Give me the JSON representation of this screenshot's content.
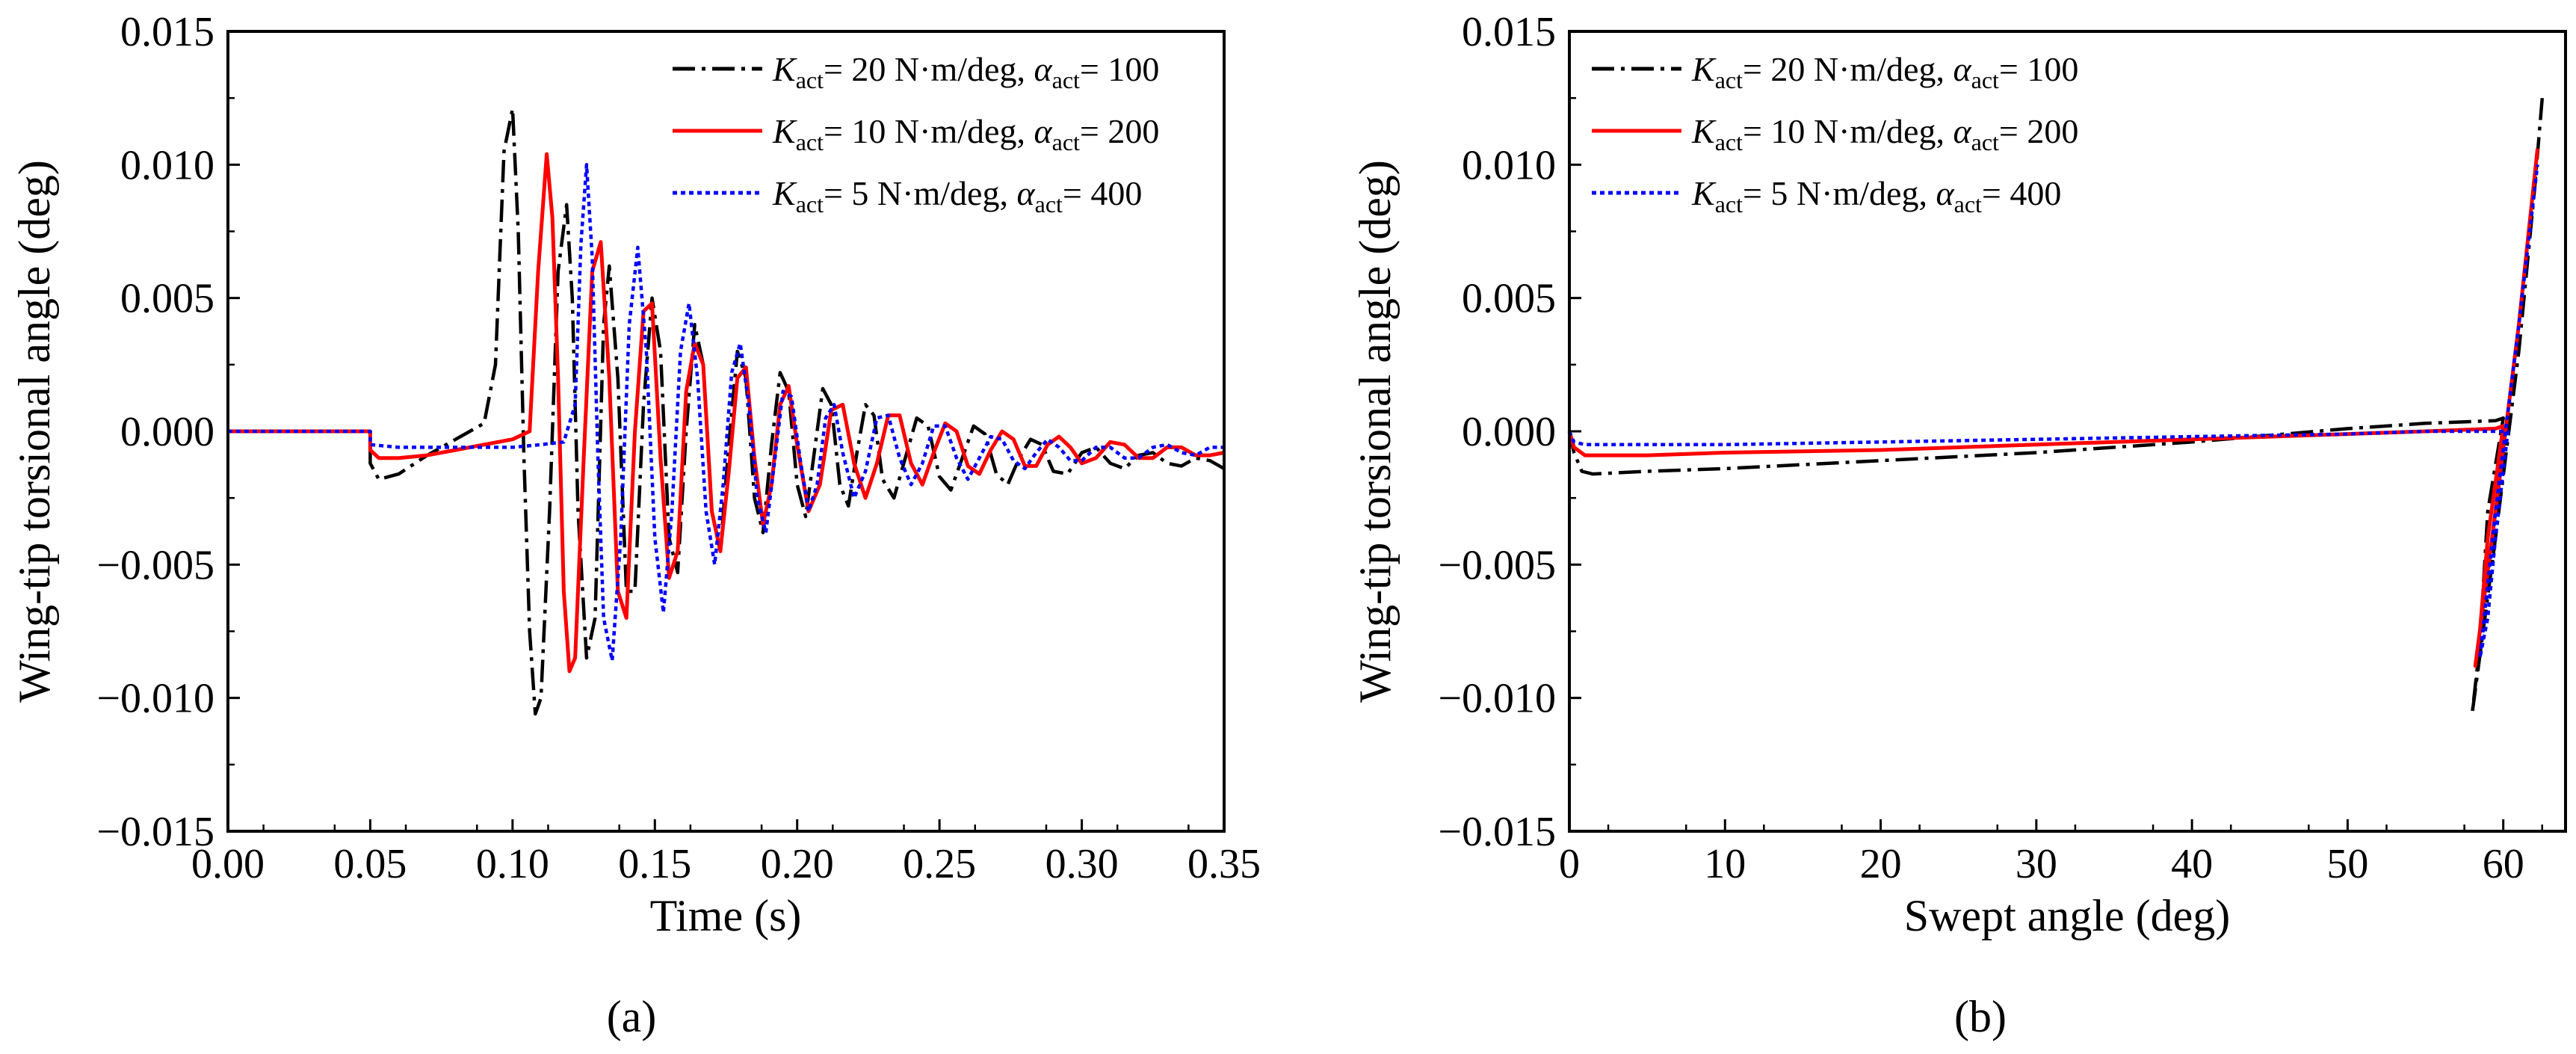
{
  "figure": {
    "panel_labels": [
      "(a)",
      "(b)"
    ],
    "legend": [
      {
        "k": "20",
        "k_unit": "N·m/deg,",
        "alpha": "100",
        "color": "#000000",
        "dash": "dashdot"
      },
      {
        "k": "10",
        "k_unit": "N·m/deg,",
        "alpha": "200",
        "color": "#ff0000",
        "dash": "solid"
      },
      {
        "k": "5",
        "k_unit": "N·m/deg,",
        "alpha": "400",
        "color": "#0000ff",
        "dash": "dot"
      }
    ],
    "legend_symbols": {
      "K": "K",
      "alpha": "α",
      "subscript": "act",
      "equals": "="
    }
  },
  "chart_data": [
    {
      "type": "line",
      "panel": "(a)",
      "title": "",
      "xlabel": "Time (s)",
      "ylabel": "Wing-tip torsional angle (deg)",
      "xlim": [
        0,
        0.35
      ],
      "ylim": [
        -0.015,
        0.015
      ],
      "xticks": [
        0,
        0.05,
        0.1,
        0.15,
        0.2,
        0.25,
        0.3,
        0.35
      ],
      "xtick_labels": [
        "0.00",
        "0.05",
        "0.10",
        "0.15",
        "0.20",
        "0.25",
        "0.30",
        "0.35"
      ],
      "yticks": [
        -0.015,
        -0.01,
        -0.005,
        0,
        0.005,
        0.01,
        0.015
      ],
      "ytick_labels": [
        "−0.015",
        "−0.010",
        "−0.005",
        "0.000",
        "0.005",
        "0.010",
        "0.015"
      ],
      "legend_position": "top-right",
      "series": [
        {
          "name": "K_act = 20 N·m/deg, α_act = 100",
          "color": "#000000",
          "dash": "dashdot",
          "x": [
            0,
            0.05,
            0.05,
            0.053,
            0.06,
            0.07,
            0.08,
            0.09,
            0.094,
            0.097,
            0.1,
            0.102,
            0.104,
            0.106,
            0.108,
            0.11,
            0.113,
            0.116,
            0.119,
            0.121,
            0.123,
            0.126,
            0.129,
            0.132,
            0.134,
            0.137,
            0.14,
            0.143,
            0.146,
            0.149,
            0.152,
            0.155,
            0.158,
            0.161,
            0.164,
            0.167,
            0.17,
            0.173,
            0.176,
            0.179,
            0.182,
            0.185,
            0.188,
            0.191,
            0.194,
            0.197,
            0.2,
            0.203,
            0.206,
            0.209,
            0.212,
            0.215,
            0.218,
            0.221,
            0.224,
            0.227,
            0.23,
            0.234,
            0.238,
            0.242,
            0.246,
            0.25,
            0.254,
            0.258,
            0.262,
            0.266,
            0.27,
            0.274,
            0.278,
            0.282,
            0.286,
            0.29,
            0.295,
            0.3,
            0.305,
            0.31,
            0.315,
            0.32,
            0.325,
            0.33,
            0.335,
            0.34,
            0.345,
            0.35
          ],
          "y": [
            0,
            0,
            -0.0012,
            -0.0018,
            -0.0016,
            -0.0009,
            -0.0003,
            0.0003,
            0.0025,
            0.0105,
            0.0121,
            0.0075,
            -0.001,
            -0.0075,
            -0.0106,
            -0.01,
            -0.003,
            0.006,
            0.0085,
            0.005,
            -0.003,
            -0.0085,
            -0.007,
            0.004,
            0.0062,
            0.002,
            -0.006,
            -0.006,
            0.001,
            0.005,
            0.003,
            -0.004,
            -0.0053,
            0.0,
            0.004,
            0.0025,
            -0.003,
            -0.0045,
            -0.0005,
            0.003,
            0.002,
            -0.0025,
            -0.0038,
            -0.0005,
            0.0022,
            0.0015,
            -0.002,
            -0.0032,
            -0.0008,
            0.0016,
            0.001,
            -0.002,
            -0.0028,
            -0.0008,
            0.001,
            0.0006,
            -0.0018,
            -0.0025,
            -0.001,
            0.0005,
            0.0002,
            -0.0017,
            -0.0022,
            -0.001,
            0.0002,
            -0.0001,
            -0.0016,
            -0.002,
            -0.001,
            -0.0003,
            -0.0005,
            -0.0015,
            -0.0016,
            -0.0008,
            -0.0006,
            -0.0012,
            -0.0014,
            -0.0009,
            -0.0008,
            -0.0012,
            -0.0013,
            -0.001,
            -0.0011,
            -0.0014
          ]
        },
        {
          "name": "K_act = 10 N·m/deg, α_act = 200",
          "color": "#ff0000",
          "dash": "solid",
          "x": [
            0,
            0.05,
            0.05,
            0.053,
            0.06,
            0.07,
            0.08,
            0.09,
            0.1,
            0.106,
            0.109,
            0.112,
            0.114,
            0.116,
            0.118,
            0.12,
            0.122,
            0.125,
            0.128,
            0.131,
            0.134,
            0.137,
            0.14,
            0.143,
            0.146,
            0.149,
            0.152,
            0.155,
            0.158,
            0.161,
            0.164,
            0.167,
            0.17,
            0.173,
            0.176,
            0.179,
            0.182,
            0.185,
            0.188,
            0.191,
            0.194,
            0.197,
            0.2,
            0.204,
            0.208,
            0.212,
            0.216,
            0.22,
            0.224,
            0.228,
            0.232,
            0.236,
            0.24,
            0.244,
            0.248,
            0.252,
            0.256,
            0.26,
            0.264,
            0.268,
            0.272,
            0.276,
            0.28,
            0.284,
            0.288,
            0.292,
            0.296,
            0.3,
            0.305,
            0.31,
            0.315,
            0.32,
            0.325,
            0.33,
            0.335,
            0.34,
            0.345,
            0.35
          ],
          "y": [
            0,
            0,
            -0.0007,
            -0.001,
            -0.001,
            -0.0009,
            -0.0007,
            -0.0005,
            -0.0003,
            0.0,
            0.006,
            0.0104,
            0.008,
            0.002,
            -0.006,
            -0.009,
            -0.0085,
            -0.001,
            0.006,
            0.0071,
            0.002,
            -0.006,
            -0.007,
            0.0,
            0.0045,
            0.0048,
            -0.001,
            -0.0055,
            -0.0045,
            0.0015,
            0.0033,
            0.0025,
            -0.003,
            -0.0045,
            -0.0015,
            0.002,
            0.0024,
            -0.001,
            -0.0035,
            -0.002,
            0.001,
            0.0017,
            -0.0005,
            -0.003,
            -0.002,
            0.0008,
            0.001,
            -0.0012,
            -0.0025,
            -0.0012,
            0.0006,
            0.0006,
            -0.0012,
            -0.002,
            -0.0008,
            0.0003,
            0.0,
            -0.0013,
            -0.0016,
            -0.0007,
            0.0,
            -0.0003,
            -0.0013,
            -0.0013,
            -0.0005,
            -0.0002,
            -0.0006,
            -0.0012,
            -0.001,
            -0.0004,
            -0.0005,
            -0.001,
            -0.001,
            -0.0006,
            -0.0006,
            -0.0009,
            -0.0009,
            -0.0008
          ]
        },
        {
          "name": "K_act = 5 N·m/deg, α_act = 400",
          "color": "#0000ff",
          "dash": "dot",
          "x": [
            0,
            0.05,
            0.05,
            0.06,
            0.08,
            0.1,
            0.11,
            0.118,
            0.122,
            0.124,
            0.126,
            0.128,
            0.13,
            0.132,
            0.135,
            0.138,
            0.141,
            0.144,
            0.147,
            0.15,
            0.153,
            0.156,
            0.159,
            0.162,
            0.165,
            0.168,
            0.171,
            0.174,
            0.177,
            0.18,
            0.183,
            0.186,
            0.189,
            0.192,
            0.195,
            0.198,
            0.201,
            0.204,
            0.207,
            0.21,
            0.213,
            0.216,
            0.22,
            0.224,
            0.228,
            0.232,
            0.236,
            0.24,
            0.244,
            0.248,
            0.252,
            0.256,
            0.26,
            0.264,
            0.268,
            0.272,
            0.276,
            0.28,
            0.284,
            0.288,
            0.292,
            0.296,
            0.3,
            0.305,
            0.31,
            0.315,
            0.32,
            0.325,
            0.33,
            0.335,
            0.34,
            0.345,
            0.35
          ],
          "y": [
            0,
            0,
            -0.0005,
            -0.0006,
            -0.0006,
            -0.0006,
            -0.0005,
            -0.0004,
            0.001,
            0.007,
            0.01,
            0.0065,
            -0.001,
            -0.007,
            -0.0086,
            -0.004,
            0.004,
            0.0069,
            0.003,
            -0.004,
            -0.0068,
            -0.003,
            0.003,
            0.0048,
            0.002,
            -0.003,
            -0.005,
            -0.002,
            0.0022,
            0.0033,
            0.001,
            -0.0025,
            -0.0038,
            -0.0012,
            0.0015,
            0.0013,
            -0.001,
            -0.003,
            -0.002,
            0.0005,
            0.001,
            -0.0008,
            -0.0025,
            -0.0015,
            0.0005,
            0.0006,
            -0.001,
            -0.002,
            -0.0012,
            0.0002,
            0.0002,
            -0.001,
            -0.0018,
            -0.001,
            -0.0002,
            -0.0003,
            -0.0011,
            -0.0014,
            -0.0008,
            -0.0003,
            -0.0006,
            -0.0011,
            -0.0011,
            -0.0006,
            -0.0006,
            -0.001,
            -0.001,
            -0.0006,
            -0.0005,
            -0.0008,
            -0.0009,
            -0.0006,
            -0.0006
          ]
        }
      ]
    },
    {
      "type": "line",
      "panel": "(b)",
      "title": "",
      "xlabel": "Swept angle (deg)",
      "ylabel": "Wing-tip torsional angle (deg)",
      "xlim": [
        0,
        64
      ],
      "ylim": [
        -0.015,
        0.015
      ],
      "xticks": [
        0,
        10,
        20,
        30,
        40,
        50,
        60
      ],
      "xtick_labels": [
        "0",
        "10",
        "20",
        "30",
        "40",
        "50",
        "60"
      ],
      "yticks": [
        -0.015,
        -0.01,
        -0.005,
        0,
        0.005,
        0.01,
        0.015
      ],
      "ytick_labels": [
        "−0.015",
        "−0.010",
        "−0.005",
        "0.000",
        "0.005",
        "0.010",
        "0.015"
      ],
      "legend_position": "top-left",
      "series": [
        {
          "name": "K_act = 20 N·m/deg, α_act = 100",
          "color": "#000000",
          "dash": "dashdot",
          "x": [
            0,
            0.3,
            0.8,
            1.5,
            5,
            10,
            20,
            30,
            40,
            50,
            55,
            59.5,
            60.0,
            59.0,
            58.5,
            58.0,
            59.5,
            61.0,
            62.0,
            62.5
          ],
          "y": [
            0,
            -0.0008,
            -0.0015,
            -0.0016,
            -0.0015,
            -0.0014,
            -0.0011,
            -0.0008,
            -0.0004,
            0.0001,
            0.0003,
            0.0004,
            0.0005,
            -0.003,
            -0.008,
            -0.0106,
            -0.004,
            0.003,
            0.009,
            0.0125
          ]
        },
        {
          "name": "K_act = 10 N·m/deg, α_act = 200",
          "color": "#ff0000",
          "dash": "solid",
          "x": [
            0,
            0.3,
            1,
            5,
            10,
            20,
            30,
            40,
            50,
            55,
            59.5,
            60.0,
            59.0,
            58.5,
            58.2,
            59.5,
            61.0,
            62.2
          ],
          "y": [
            0,
            -0.0006,
            -0.0009,
            -0.0009,
            -0.0008,
            -0.0007,
            -0.0005,
            -0.0003,
            -0.0001,
            0.0,
            0.0001,
            0.0002,
            -0.004,
            -0.0075,
            -0.0088,
            -0.003,
            0.004,
            0.0106
          ]
        },
        {
          "name": "K_act = 5 N·m/deg, α_act = 400",
          "color": "#0000ff",
          "dash": "dot",
          "x": [
            0,
            0.3,
            1,
            5,
            10,
            20,
            30,
            40,
            50,
            55,
            59.5,
            60.3,
            59.5,
            59.0,
            58.5,
            59.5,
            61.0,
            62.2
          ],
          "y": [
            0,
            -0.0004,
            -0.0005,
            -0.0005,
            -0.0005,
            -0.0004,
            -0.0003,
            -0.0002,
            -0.0001,
            0.0,
            0.0,
            0.0,
            -0.004,
            -0.007,
            -0.0085,
            -0.003,
            0.004,
            0.01
          ]
        }
      ]
    }
  ]
}
